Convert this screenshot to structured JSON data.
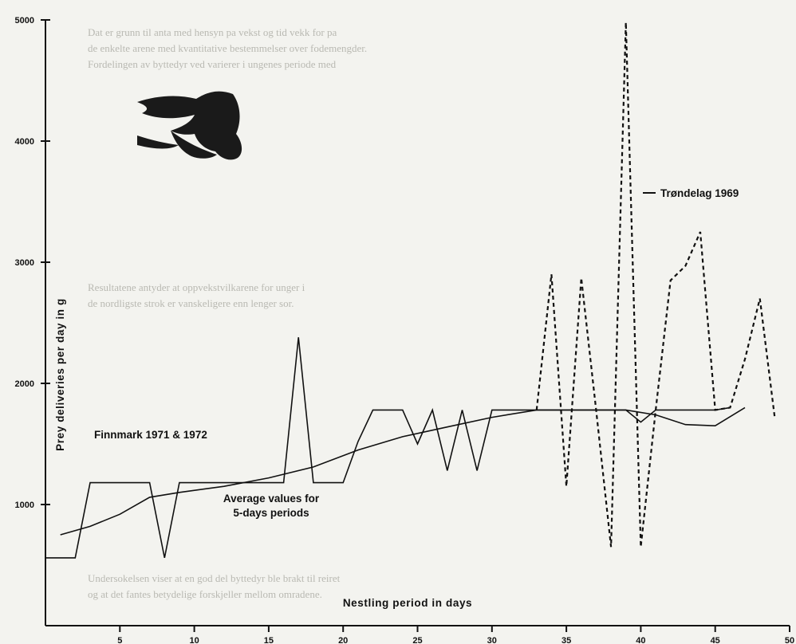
{
  "chart_data": {
    "type": "line",
    "xlabel": "Nestling period in days",
    "ylabel": "Prey deliveries per day in g",
    "xlim": [
      0,
      50
    ],
    "ylim": [
      0,
      5000
    ],
    "x_ticks": [
      5,
      10,
      15,
      20,
      25,
      30,
      35,
      40,
      45,
      50
    ],
    "y_ticks": [
      1000,
      2000,
      3000,
      4000,
      5000
    ],
    "grid": false,
    "legend": "annotations",
    "series": [
      {
        "name": "Finnmark 1971 & 1972",
        "style": "solid",
        "x": [
          0,
          1,
          2,
          3,
          4,
          5,
          6,
          7,
          8,
          9,
          10,
          11,
          12,
          13,
          14,
          15,
          16,
          17,
          18,
          19,
          20,
          21,
          22,
          23,
          24,
          25,
          26,
          27,
          28,
          29,
          30,
          31,
          32,
          33,
          34,
          35,
          36,
          37,
          38,
          39,
          40,
          41,
          42,
          43,
          44,
          45,
          46
        ],
        "y": [
          560,
          560,
          560,
          1180,
          1180,
          1180,
          1180,
          1180,
          560,
          1180,
          1180,
          1180,
          1180,
          1180,
          1180,
          1180,
          1180,
          2380,
          1180,
          1180,
          1180,
          1520,
          1780,
          1780,
          1780,
          1500,
          1780,
          1280,
          1780,
          1280,
          1780,
          1780,
          1780,
          1780,
          1780,
          1780,
          1780,
          1780,
          1780,
          1780,
          1680,
          1780,
          1780,
          1780,
          1780,
          1780,
          1800
        ]
      },
      {
        "name": "Trøndelag 1969",
        "style": "dashed",
        "x": [
          33,
          34,
          35,
          36,
          37,
          38,
          39,
          40,
          41,
          42,
          43,
          44,
          45,
          46,
          47,
          48,
          49
        ],
        "y": [
          1780,
          2900,
          1150,
          2870,
          1780,
          650,
          4980,
          650,
          1780,
          2850,
          2970,
          3250,
          1780,
          1800,
          2200,
          2700,
          1720
        ]
      },
      {
        "name": "Average values for 5-days periods",
        "style": "solid",
        "x": [
          1,
          3,
          5,
          7,
          9,
          12,
          15,
          18,
          21,
          24,
          27,
          30,
          33,
          36,
          39,
          41,
          43,
          45,
          47
        ],
        "y": [
          750,
          820,
          920,
          1060,
          1100,
          1150,
          1220,
          1310,
          1450,
          1560,
          1640,
          1720,
          1780,
          1780,
          1780,
          1740,
          1660,
          1650,
          1800
        ]
      }
    ],
    "annotations": {
      "finnmark": "Finnmark 1971 & 1972",
      "trondelag": "Trøndelag 1969",
      "average_line1": "Average values for",
      "average_line2": "5-days periods"
    }
  },
  "background_text": [
    "Dat er grunn til anta med hensyn pa vekst og tid vekk for pa",
    "de enkelte arene med kvantitative bestemmelser over fodemengder.",
    "Fordelingen av byttedyr ved varierer i ungenes periode med",
    "Resultatene antyder at oppvekstvilkarene for unger i",
    "de nordligste strok er vanskeligere enn lenger sor.",
    "Undersokelsen viser at en god del byttedyr ble brakt til reiret",
    "og at det fantes betydelige forskjeller mellom omradene."
  ]
}
